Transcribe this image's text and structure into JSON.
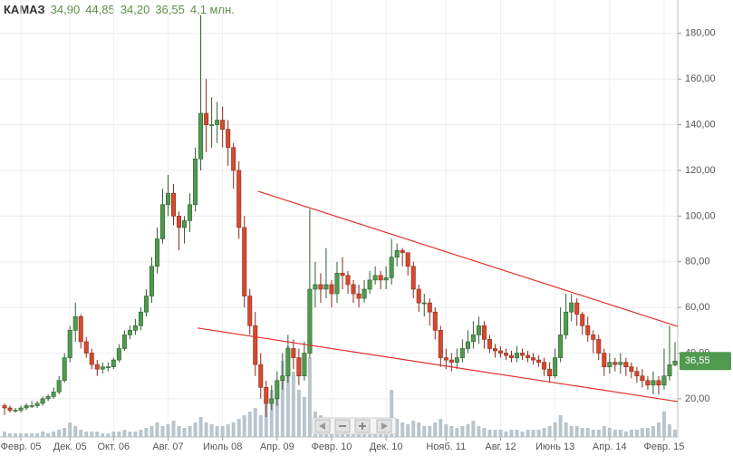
{
  "chart_data": {
    "type": "candlestick",
    "title": "КАМАЗ",
    "header_labels": [
      "34,90",
      "44,85",
      "34,20",
      "36,55",
      "4,1 млн."
    ],
    "categories": [
      null,
      null,
      null,
      "Февр. 05",
      null,
      null,
      null,
      null,
      null,
      null,
      null,
      null,
      "Дек. 05",
      null,
      null,
      null,
      null,
      null,
      null,
      null,
      "Окт. 06",
      null,
      null,
      null,
      null,
      null,
      null,
      null,
      null,
      null,
      "Авг. 07",
      null,
      null,
      null,
      null,
      null,
      null,
      null,
      null,
      null,
      "Июль 08",
      null,
      null,
      null,
      null,
      null,
      null,
      null,
      null,
      null,
      "Апр. 09",
      null,
      null,
      null,
      null,
      null,
      null,
      null,
      null,
      null,
      "Февр. 10",
      null,
      null,
      null,
      null,
      null,
      null,
      null,
      null,
      null,
      "Дек. 10",
      null,
      null,
      null,
      null,
      null,
      null,
      null,
      null,
      null,
      null,
      "Нояб. 11",
      null,
      null,
      null,
      null,
      null,
      null,
      null,
      null,
      null,
      "Авг. 12",
      null,
      null,
      null,
      null,
      null,
      null,
      null,
      null,
      null,
      "Июнь 13",
      null,
      null,
      null,
      null,
      null,
      null,
      null,
      null,
      null,
      "Апр. 14",
      null,
      null,
      null,
      null,
      null,
      null,
      null,
      null,
      null,
      "Февр. 15",
      null,
      null
    ],
    "open": [
      17,
      16,
      15,
      15,
      16,
      17,
      17,
      18,
      20,
      21,
      23,
      28,
      38,
      50,
      56,
      45,
      40,
      35,
      33,
      34,
      34,
      37,
      42,
      48,
      50,
      52,
      58,
      65,
      78,
      90,
      105,
      110,
      100,
      95,
      98,
      105,
      125,
      145,
      140,
      140,
      142,
      138,
      130,
      120,
      95,
      65,
      52,
      35,
      25,
      18,
      20,
      28,
      30,
      42,
      38,
      30,
      40,
      68,
      70,
      68,
      70,
      66,
      75,
      74,
      70,
      66,
      64,
      68,
      72,
      74,
      72,
      73,
      82,
      85,
      84,
      78,
      68,
      62,
      62,
      58,
      50,
      38,
      37,
      36,
      38,
      42,
      45,
      48,
      52,
      46,
      42,
      41,
      40,
      39,
      38,
      40,
      39,
      38,
      37,
      36,
      33,
      30,
      38,
      48,
      58,
      62,
      57,
      52,
      48,
      46,
      40,
      34,
      36,
      35,
      36,
      34,
      32,
      30,
      28,
      26,
      28,
      26,
      30,
      34.9
    ],
    "high": [
      18,
      17,
      16,
      17,
      18,
      19,
      19,
      21,
      22,
      25,
      30,
      40,
      52,
      62,
      57,
      47,
      42,
      37,
      36,
      36,
      38,
      44,
      50,
      52,
      55,
      60,
      68,
      82,
      95,
      112,
      118,
      114,
      102,
      100,
      110,
      130,
      188,
      160,
      152,
      150,
      148,
      142,
      132,
      124,
      100,
      68,
      58,
      40,
      28,
      26,
      32,
      40,
      48,
      46,
      42,
      45,
      103,
      80,
      75,
      86,
      72,
      80,
      82,
      76,
      72,
      70,
      72,
      76,
      78,
      76,
      78,
      90,
      88,
      86,
      84,
      80,
      70,
      66,
      64,
      60,
      52,
      42,
      40,
      42,
      46,
      50,
      54,
      56,
      54,
      48,
      44,
      43,
      42,
      41,
      43,
      42,
      41,
      40,
      39,
      38,
      36,
      42,
      60,
      66,
      66,
      64,
      58,
      56,
      50,
      48,
      42,
      40,
      38,
      40,
      38,
      36,
      34,
      33,
      30,
      32,
      30,
      42,
      52,
      44.85
    ],
    "low": [
      13,
      14,
      14,
      14,
      15,
      16,
      16,
      17,
      19,
      20,
      22,
      27,
      36,
      45,
      42,
      38,
      33,
      30,
      31,
      32,
      33,
      36,
      41,
      46,
      48,
      50,
      56,
      62,
      75,
      88,
      100,
      96,
      85,
      88,
      93,
      102,
      120,
      128,
      130,
      132,
      130,
      122,
      112,
      90,
      60,
      48,
      30,
      20,
      12,
      15,
      17,
      24,
      27,
      33,
      26,
      28,
      38,
      60,
      62,
      64,
      60,
      62,
      68,
      66,
      62,
      60,
      62,
      66,
      70,
      68,
      68,
      70,
      78,
      78,
      74,
      64,
      58,
      56,
      52,
      46,
      34,
      33,
      32,
      33,
      36,
      40,
      42,
      44,
      42,
      40,
      38,
      38,
      37,
      36,
      36,
      37,
      36,
      35,
      34,
      30,
      27,
      29,
      36,
      46,
      54,
      52,
      48,
      45,
      40,
      37,
      30,
      31,
      32,
      31,
      30,
      29,
      27,
      25,
      24,
      22,
      22,
      24,
      28,
      34.2
    ],
    "close": [
      16,
      15,
      15,
      16,
      17,
      17,
      18,
      20,
      21,
      23,
      28,
      38,
      50,
      56,
      45,
      40,
      35,
      33,
      34,
      34,
      37,
      42,
      48,
      50,
      52,
      58,
      65,
      78,
      90,
      105,
      110,
      100,
      95,
      98,
      105,
      125,
      145,
      140,
      140,
      142,
      138,
      130,
      120,
      95,
      65,
      52,
      35,
      25,
      18,
      20,
      28,
      30,
      42,
      38,
      30,
      40,
      68,
      70,
      68,
      70,
      66,
      75,
      74,
      70,
      66,
      64,
      68,
      72,
      74,
      72,
      73,
      82,
      85,
      84,
      78,
      68,
      62,
      62,
      58,
      50,
      38,
      37,
      36,
      38,
      42,
      45,
      48,
      52,
      46,
      42,
      41,
      40,
      39,
      38,
      40,
      39,
      38,
      37,
      36,
      33,
      30,
      38,
      48,
      58,
      62,
      57,
      52,
      48,
      46,
      40,
      34,
      36,
      35,
      36,
      34,
      32,
      30,
      28,
      26,
      28,
      26,
      30,
      34.9,
      36.55
    ],
    "volume": [
      3,
      2,
      2,
      2,
      2,
      2,
      2,
      3,
      2,
      3,
      4,
      5,
      8,
      6,
      4,
      3,
      3,
      3,
      2,
      2,
      3,
      3,
      4,
      3,
      3,
      4,
      5,
      6,
      8,
      6,
      7,
      9,
      6,
      5,
      6,
      8,
      11,
      8,
      7,
      6,
      6,
      7,
      8,
      10,
      12,
      14,
      16,
      12,
      20,
      26,
      30,
      42,
      50,
      36,
      26,
      22,
      44,
      14,
      12,
      10,
      8,
      7,
      6,
      6,
      5,
      5,
      5,
      6,
      6,
      5,
      8,
      26,
      10,
      8,
      7,
      9,
      8,
      6,
      6,
      8,
      10,
      7,
      6,
      5,
      6,
      7,
      9,
      6,
      5,
      4,
      4,
      4,
      3,
      4,
      4,
      3,
      4,
      4,
      4,
      5,
      6,
      8,
      12,
      8,
      6,
      6,
      5,
      5,
      4,
      4,
      6,
      5,
      4,
      4,
      3,
      4,
      4,
      5,
      5,
      6,
      8,
      14,
      7,
      4.1
    ],
    "up_color": "#4f9a4f",
    "down_color": "#d5492f",
    "volume_color": "#b9c5cd",
    "trend_color": "#e0302a",
    "ylim": [
      3.3,
      194.6
    ],
    "yticks": [
      {
        "value": 20,
        "label": "20,00"
      },
      {
        "value": 40,
        "label": "40,00"
      },
      {
        "value": 60,
        "label": "60,00"
      },
      {
        "value": 80,
        "label": "80,00"
      },
      {
        "value": 100,
        "label": "100,00"
      },
      {
        "value": 120,
        "label": "120,00"
      },
      {
        "value": 140,
        "label": "140,00"
      },
      {
        "value": 160,
        "label": "160,00"
      },
      {
        "value": 180,
        "label": "180,00"
      }
    ],
    "grid": true,
    "trend_lines": [
      {
        "x": [
          46.5,
          125.4
        ],
        "y": [
          110.9,
          51.7
        ]
      },
      {
        "x": [
          35.4,
          125.4
        ],
        "y": [
          51,
          18.8
        ]
      }
    ]
  }
}
